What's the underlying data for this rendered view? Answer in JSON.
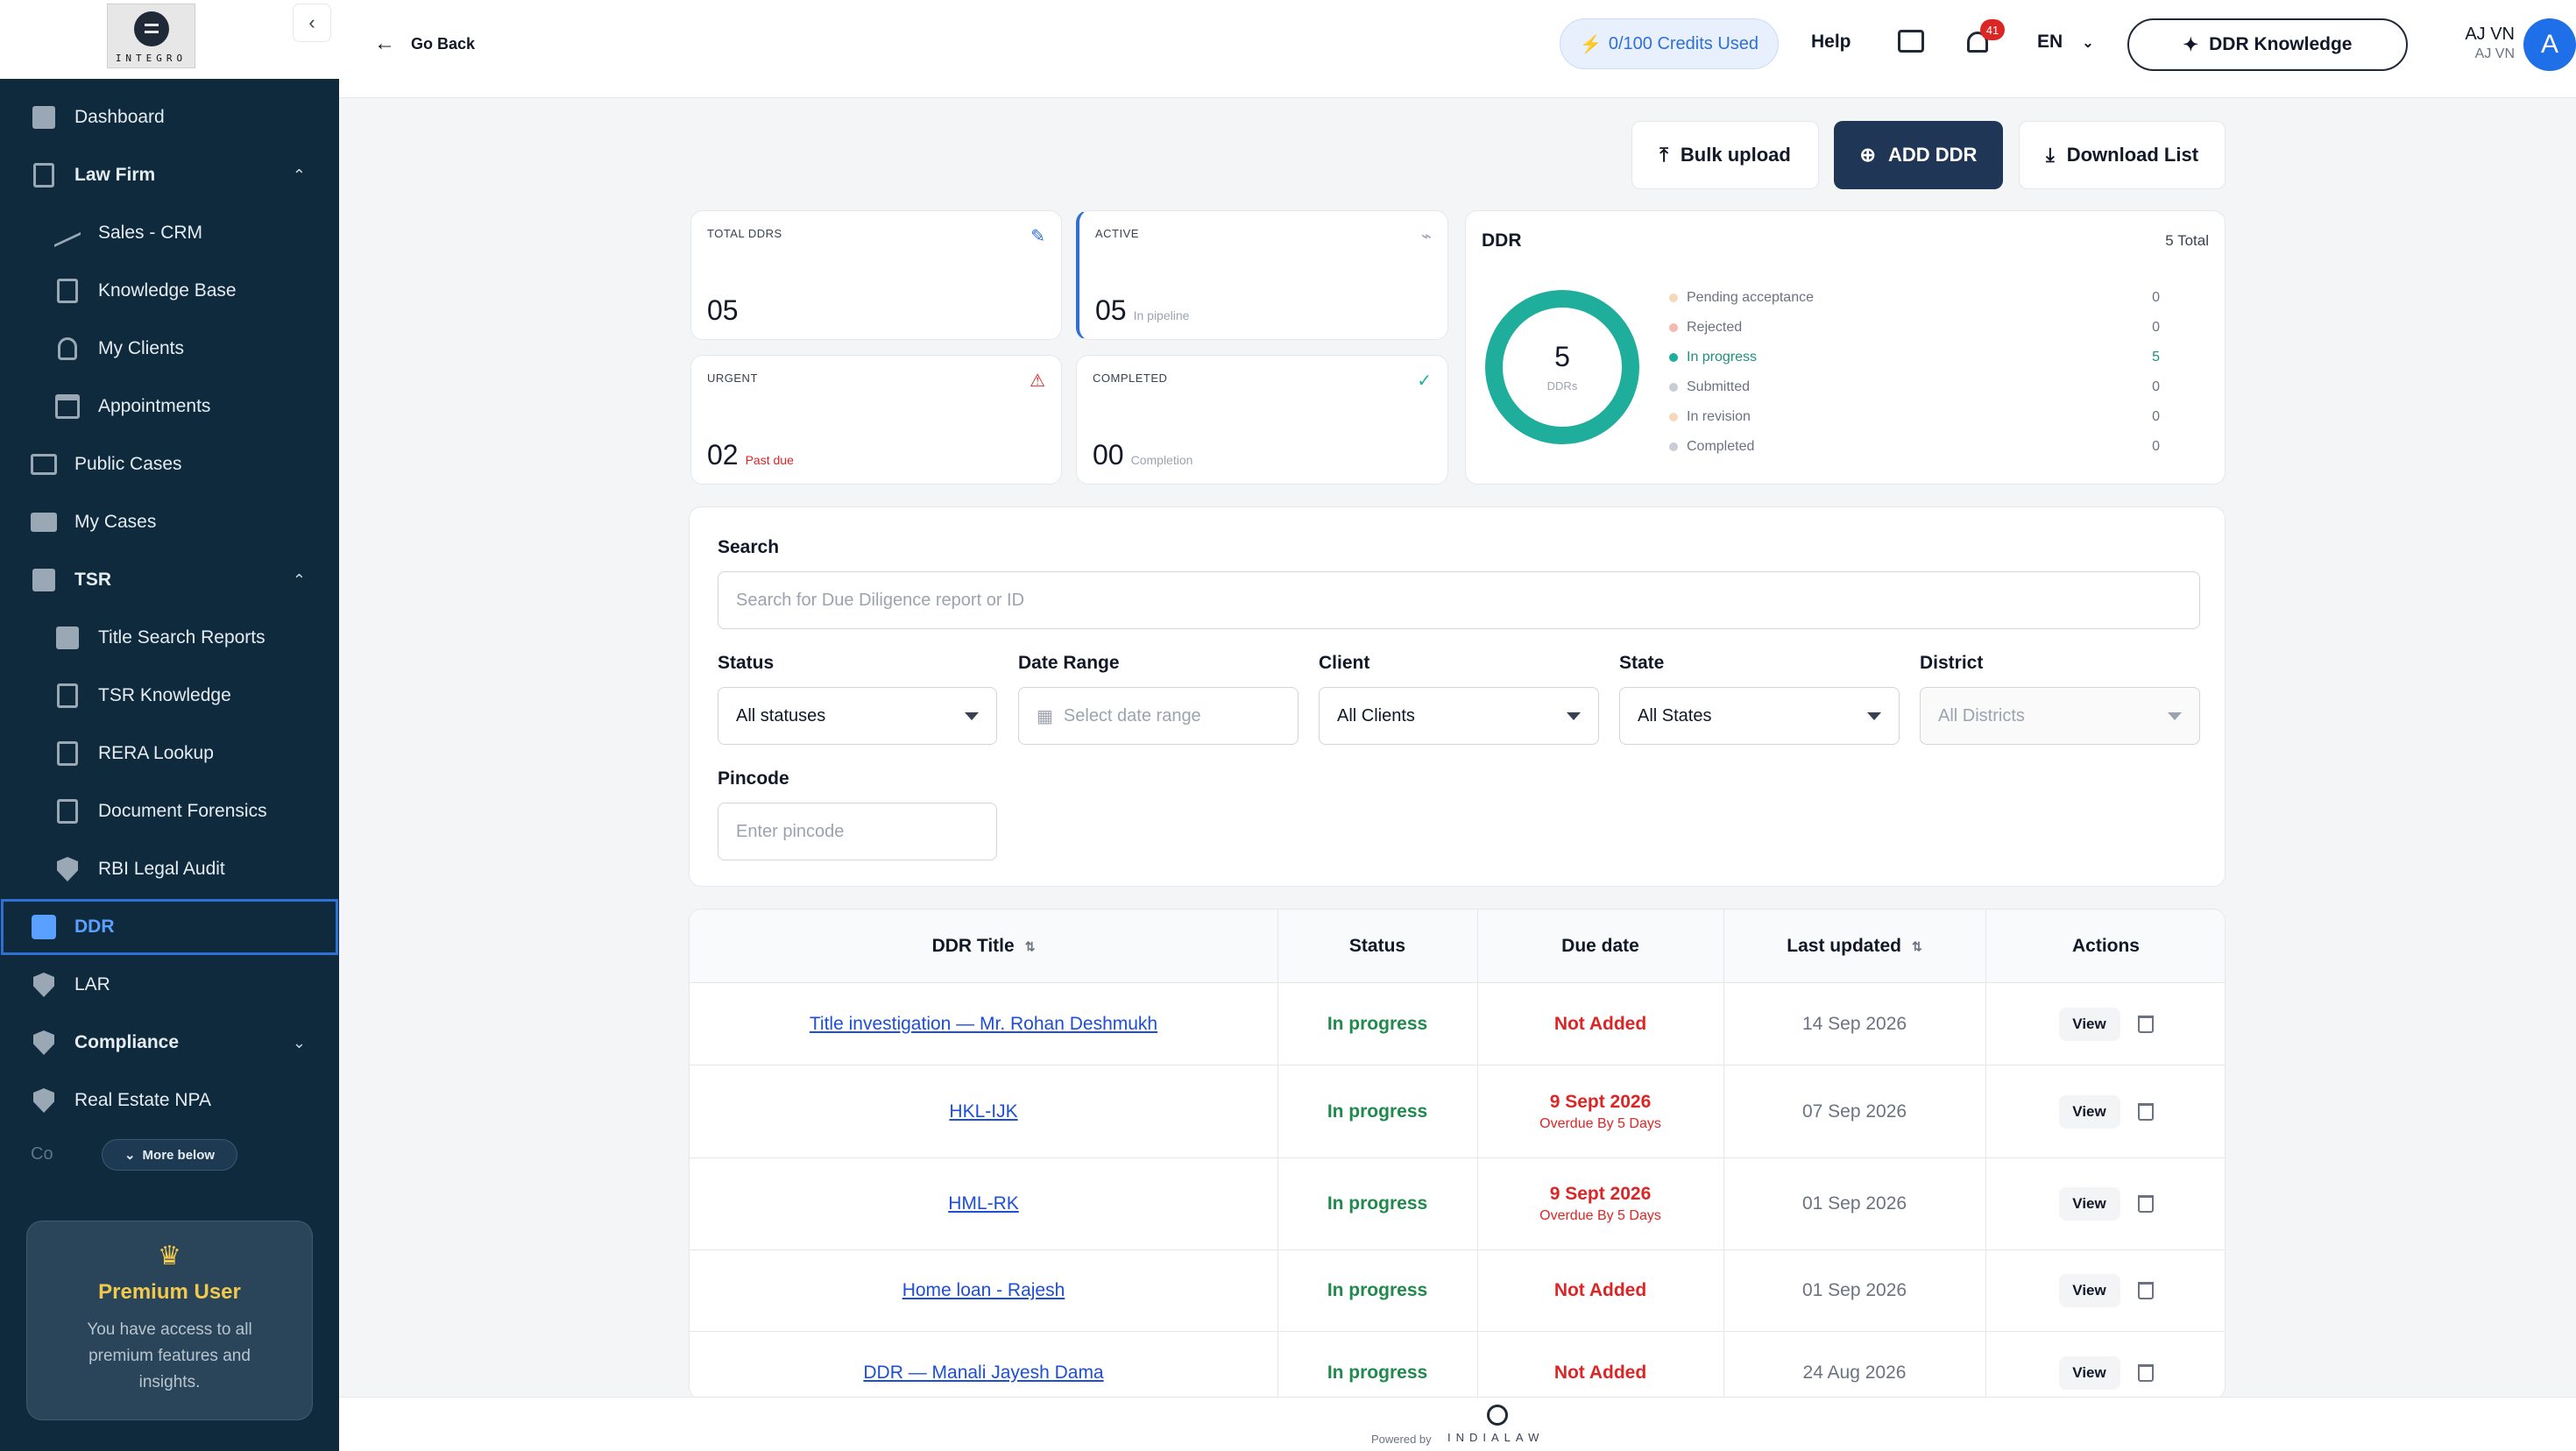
{
  "logo": {
    "text": "INTEGRO"
  },
  "sidebar": {
    "items": [
      {
        "label": "Dashboard",
        "icon": "dashboard-icon"
      },
      {
        "label": "Law Firm",
        "icon": "building-icon",
        "expanded": true
      },
      {
        "label": "Sales - CRM",
        "icon": "trend-icon"
      },
      {
        "label": "Knowledge Base",
        "icon": "book-icon"
      },
      {
        "label": "My Clients",
        "icon": "person-icon"
      },
      {
        "label": "Appointments",
        "icon": "calendar-icon"
      },
      {
        "label": "Public Cases",
        "icon": "briefcase-icon"
      },
      {
        "label": "My Cases",
        "icon": "folder-icon"
      },
      {
        "label": "TSR",
        "icon": "document-icon",
        "expanded": true
      },
      {
        "label": "Title Search Reports",
        "icon": "document-icon"
      },
      {
        "label": "TSR Knowledge",
        "icon": "book-icon"
      },
      {
        "label": "RERA Lookup",
        "icon": "building-icon"
      },
      {
        "label": "Document Forensics",
        "icon": "scan-icon"
      },
      {
        "label": "RBI Legal Audit",
        "icon": "shield-icon"
      },
      {
        "label": "DDR",
        "icon": "checklist-icon",
        "active": true
      },
      {
        "label": "LAR",
        "icon": "shield-search-icon"
      },
      {
        "label": "Compliance",
        "icon": "shield-icon",
        "expanded": false
      },
      {
        "label": "Real Estate NPA",
        "icon": "shield-icon"
      }
    ],
    "faded_item": "Co",
    "more_below": "More below",
    "premium": {
      "title": "Premium User",
      "description": "You have access to all premium features and insights."
    }
  },
  "topbar": {
    "go_back": "Go Back",
    "credits": "0/100 Credits Used",
    "help": "Help",
    "notifications_count": "41",
    "language": "EN",
    "ddr_knowledge": "DDR Knowledge",
    "user_name": "AJ VN",
    "user_sub": "AJ VN",
    "avatar_letter": "A"
  },
  "actions": {
    "bulk_upload": "Bulk upload",
    "add_ddr": "ADD DDR",
    "download_list": "Download List"
  },
  "stats": {
    "total": {
      "label": "TOTAL DDRS",
      "value": "05"
    },
    "active": {
      "label": "ACTIVE",
      "value": "05",
      "sub": "In pipeline"
    },
    "urgent": {
      "label": "URGENT",
      "value": "02",
      "sub": "Past due"
    },
    "completed": {
      "label": "COMPLETED",
      "value": "00",
      "sub": "Completion"
    }
  },
  "ddr_summary": {
    "title": "DDR",
    "total": "5 Total",
    "center_value": "5",
    "center_label": "DDRs",
    "legend": [
      {
        "label": "Pending acceptance",
        "count": "0",
        "color": "#f5d9b8"
      },
      {
        "label": "Rejected",
        "count": "0",
        "color": "#f4b9b0"
      },
      {
        "label": "In progress",
        "count": "5",
        "color": "#1fae9b"
      },
      {
        "label": "Submitted",
        "count": "0",
        "color": "#c9ced6"
      },
      {
        "label": "In revision",
        "count": "0",
        "color": "#f5d9b8"
      },
      {
        "label": "Completed",
        "count": "0",
        "color": "#c9ced6"
      }
    ]
  },
  "filters": {
    "search_label": "Search",
    "search_placeholder": "Search for Due Diligence report or ID",
    "status_label": "Status",
    "status_value": "All statuses",
    "date_label": "Date Range",
    "date_placeholder": "Select date range",
    "client_label": "Client",
    "client_value": "All Clients",
    "state_label": "State",
    "state_value": "All States",
    "district_label": "District",
    "district_value": "All Districts",
    "pincode_label": "Pincode",
    "pincode_placeholder": "Enter pincode"
  },
  "table": {
    "headers": [
      "DDR Title",
      "Status",
      "Due date",
      "Last updated",
      "Actions"
    ],
    "view_label": "View",
    "rows": [
      {
        "title": "Title investigation — Mr. Rohan Deshmukh",
        "status": "In progress",
        "due": "Not Added",
        "due_sub": "",
        "updated": "14 Sep 2026"
      },
      {
        "title": "HKL-IJK",
        "status": "In progress",
        "due": "9 Sept 2026",
        "due_sub": "Overdue By 5 Days",
        "updated": "07 Sep 2026"
      },
      {
        "title": "HML-RK",
        "status": "In progress",
        "due": "9 Sept 2026",
        "due_sub": "Overdue By 5 Days",
        "updated": "01 Sep 2026"
      },
      {
        "title": "Home loan - Rajesh",
        "status": "In progress",
        "due": "Not Added",
        "due_sub": "",
        "updated": "01 Sep 2026"
      },
      {
        "title": "DDR — Manali Jayesh Dama",
        "status": "In progress",
        "due": "Not Added",
        "due_sub": "",
        "updated": "24 Aug 2026"
      }
    ]
  },
  "footer": {
    "powered": "Powered by",
    "brand": "INDIALAW"
  }
}
